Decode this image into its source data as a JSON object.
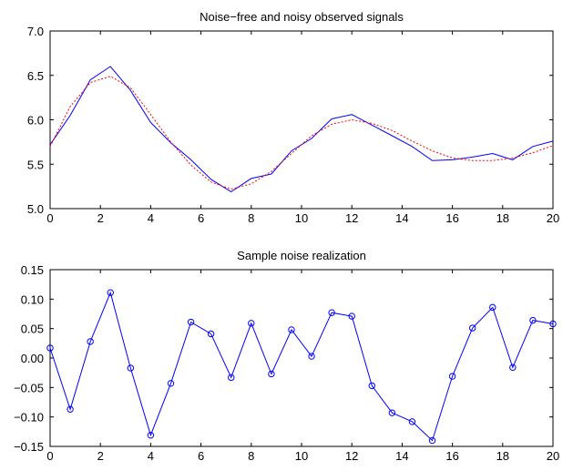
{
  "chart_data": [
    {
      "type": "line",
      "title": "Noise−free and noisy observed signals",
      "xlabel": "",
      "ylabel": "",
      "xlim": [
        0,
        20
      ],
      "ylim": [
        5.0,
        7.0
      ],
      "xticks": [
        "0",
        "2",
        "4",
        "6",
        "8",
        "10",
        "12",
        "14",
        "16",
        "18",
        "20"
      ],
      "yticks": [
        "5.0",
        "5.5",
        "6.0",
        "6.5",
        "7.0"
      ],
      "grid": false,
      "series": [
        {
          "style": "solid",
          "color": "#0000ff",
          "x": [
            0,
            0.8,
            1.6,
            2.4,
            3.2,
            4.0,
            4.8,
            5.6,
            6.4,
            7.2,
            8.0,
            8.8,
            9.6,
            10.4,
            11.2,
            12.0,
            12.8,
            13.6,
            14.4,
            15.2,
            16.0,
            16.8,
            17.6,
            18.4,
            19.2,
            20.0
          ],
          "y": [
            5.72,
            6.05,
            6.45,
            6.6,
            6.33,
            5.97,
            5.74,
            5.55,
            5.33,
            5.19,
            5.34,
            5.39,
            5.65,
            5.79,
            6.01,
            6.06,
            5.94,
            5.82,
            5.7,
            5.54,
            5.55,
            5.58,
            5.62,
            5.55,
            5.7,
            5.76
          ]
        },
        {
          "style": "dotted",
          "color": "#ff0000",
          "x": [
            0,
            0.8,
            1.6,
            2.4,
            3.2,
            4.0,
            4.8,
            5.6,
            6.4,
            7.2,
            8.0,
            8.8,
            9.6,
            10.4,
            11.2,
            12.0,
            12.8,
            13.6,
            14.4,
            15.2,
            16.0,
            16.8,
            17.6,
            18.4,
            19.2,
            20.0
          ],
          "y": [
            5.7,
            6.15,
            6.42,
            6.49,
            6.36,
            6.06,
            5.75,
            5.49,
            5.3,
            5.22,
            5.28,
            5.42,
            5.62,
            5.82,
            5.95,
            6.0,
            5.96,
            5.88,
            5.76,
            5.65,
            5.57,
            5.54,
            5.54,
            5.57,
            5.63,
            5.71
          ]
        }
      ]
    },
    {
      "type": "line",
      "title": "Sample noise realization",
      "xlabel": "",
      "ylabel": "",
      "xlim": [
        0,
        20
      ],
      "ylim": [
        -0.15,
        0.15
      ],
      "xticks": [
        "0",
        "2",
        "4",
        "6",
        "8",
        "10",
        "12",
        "14",
        "16",
        "18",
        "20"
      ],
      "yticks": [
        "−0.15",
        "−0.10",
        "−0.05",
        "0.00",
        "0.05",
        "0.10",
        "0.15"
      ],
      "grid": false,
      "markers": "circle",
      "series": [
        {
          "style": "solid",
          "color": "#0000ff",
          "x": [
            0,
            0.8,
            1.6,
            2.4,
            3.2,
            4.0,
            4.8,
            5.6,
            6.4,
            7.2,
            8.0,
            8.8,
            9.6,
            10.4,
            11.2,
            12.0,
            12.8,
            13.6,
            14.4,
            15.2,
            16.0,
            16.8,
            17.6,
            18.4,
            19.2,
            20.0
          ],
          "y": [
            0.017,
            -0.087,
            0.028,
            0.111,
            -0.017,
            -0.131,
            -0.043,
            0.061,
            0.041,
            -0.033,
            0.059,
            -0.027,
            0.048,
            0.003,
            0.077,
            0.071,
            -0.047,
            -0.093,
            -0.108,
            -0.14,
            -0.031,
            0.051,
            0.086,
            -0.016,
            0.064,
            0.058
          ]
        }
      ]
    }
  ]
}
